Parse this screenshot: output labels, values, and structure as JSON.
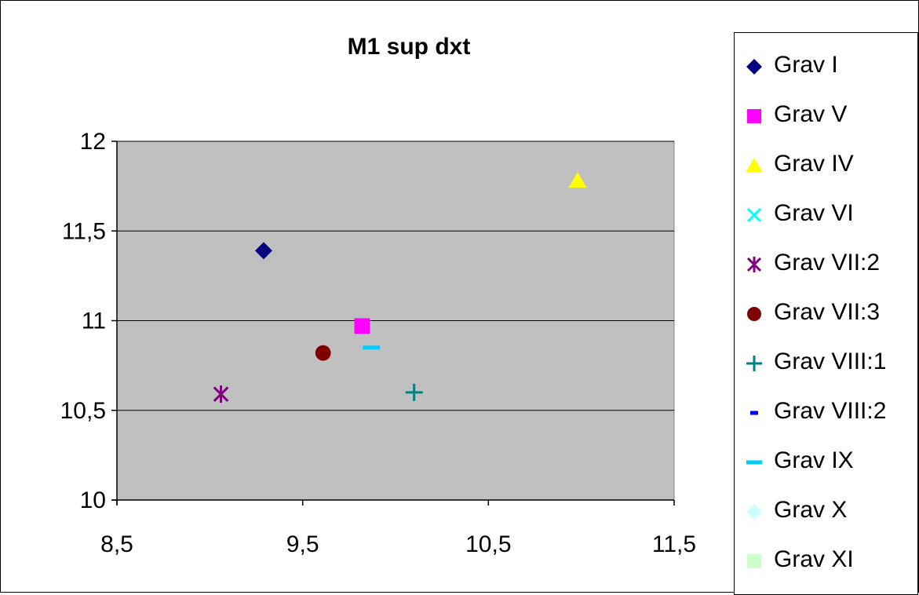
{
  "chart_data": {
    "type": "scatter",
    "title": "M1 sup dxt",
    "xlabel": "",
    "ylabel": "",
    "xlim": [
      8.5,
      11.5
    ],
    "ylim": [
      10,
      12
    ],
    "x_ticks": [
      "8,5",
      "9,5",
      "10,5",
      "11,5"
    ],
    "x_tick_values": [
      8.5,
      9.5,
      10.5,
      11.5
    ],
    "y_ticks": [
      "10",
      "10,5",
      "11",
      "11,5",
      "12"
    ],
    "y_tick_values": [
      10,
      10.5,
      11,
      11.5,
      12
    ],
    "grid": "horizontal",
    "plot_background": "#c0c0c0",
    "legend_position": "right",
    "series": [
      {
        "name": "Grav I",
        "marker": "diamond",
        "color": "#000080",
        "points": [
          [
            9.29,
            11.39
          ]
        ]
      },
      {
        "name": "Grav V",
        "marker": "square",
        "color": "#ff00ff",
        "points": [
          [
            9.82,
            10.97
          ]
        ]
      },
      {
        "name": "Grav IV",
        "marker": "triangle",
        "color": "#ffff00",
        "points": [
          [
            10.98,
            11.78
          ]
        ]
      },
      {
        "name": "Grav VI",
        "marker": "x",
        "color": "#00ffff",
        "points": []
      },
      {
        "name": "Grav VII:2",
        "marker": "star",
        "color": "#800080",
        "points": [
          [
            9.06,
            10.59
          ]
        ]
      },
      {
        "name": "Grav VII:3",
        "marker": "circle",
        "color": "#800000",
        "points": [
          [
            9.61,
            10.82
          ]
        ]
      },
      {
        "name": "Grav VIII:1",
        "marker": "plus",
        "color": "#008080",
        "points": [
          [
            10.1,
            10.6
          ]
        ]
      },
      {
        "name": "Grav VIII:2",
        "marker": "dash-short",
        "color": "#0000ff",
        "points": []
      },
      {
        "name": "Grav IX",
        "marker": "dash",
        "color": "#00ccff",
        "points": [
          [
            9.87,
            10.85
          ]
        ]
      },
      {
        "name": "Grav X",
        "marker": "diamond",
        "color": "#ccffff",
        "points": []
      },
      {
        "name": "Grav XI",
        "marker": "square",
        "color": "#ccffcc",
        "points": []
      }
    ]
  }
}
